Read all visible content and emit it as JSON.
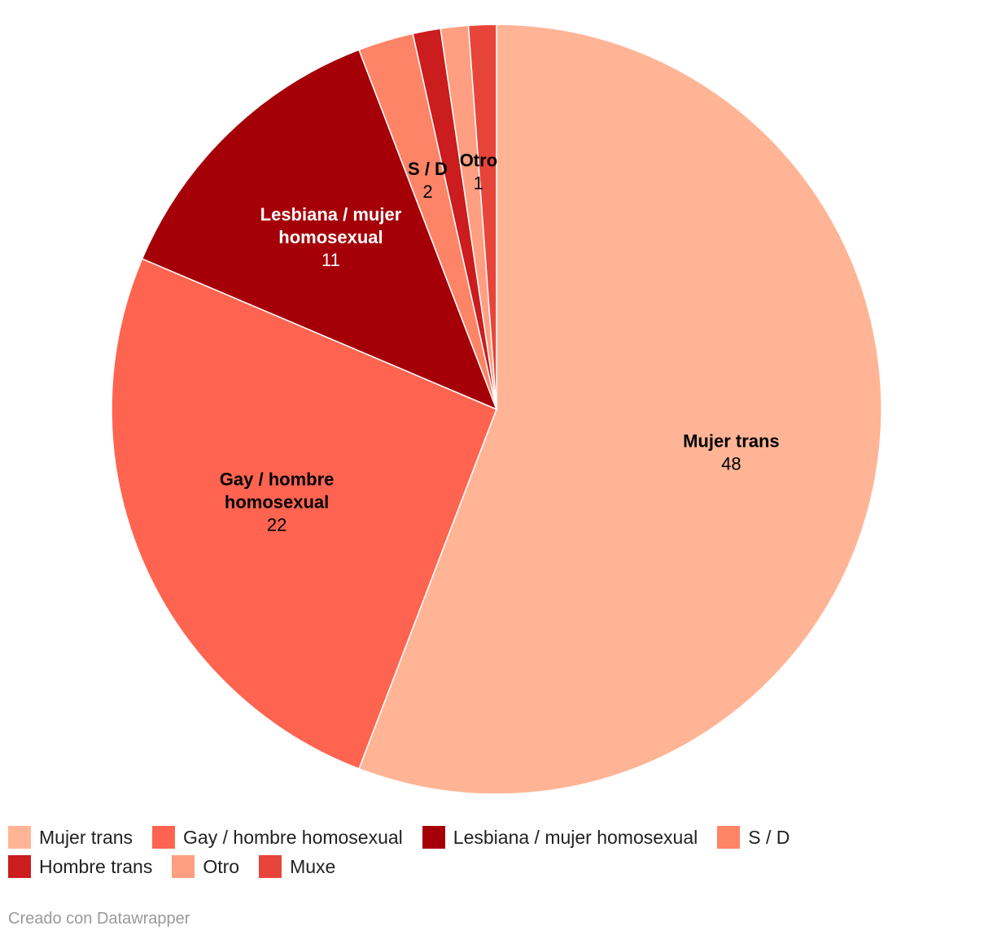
{
  "chart_data": {
    "type": "pie",
    "slices": [
      {
        "name": "Mujer trans",
        "value": 48,
        "color": "#ffb595",
        "show_label": true,
        "label_lines": [
          "Mujer trans"
        ],
        "label_color": "#000000"
      },
      {
        "name": "Gay / hombre homosexual",
        "value": 22,
        "color": "#ff6450",
        "show_label": true,
        "label_lines": [
          "Gay / hombre",
          "homosexual"
        ],
        "label_color": "#000000"
      },
      {
        "name": "Lesbiana / mujer homosexual",
        "value": 11,
        "color": "#a50008",
        "show_label": true,
        "label_lines": [
          "Lesbiana / mujer",
          "homosexual"
        ],
        "label_color": "#ffffff"
      },
      {
        "name": "S / D",
        "value": 2,
        "color": "#fe8468",
        "show_label": true,
        "label_lines": [
          "S / D"
        ],
        "label_color": "#000000"
      },
      {
        "name": "Hombre trans",
        "value": 1,
        "color": "#cb1c1e",
        "show_label": false,
        "label_lines": [
          "Hombre trans"
        ],
        "label_color": "#ffffff"
      },
      {
        "name": "Otro",
        "value": 1,
        "color": "#ff9e80",
        "show_label": true,
        "label_lines": [
          "Otro"
        ],
        "label_color": "#000000"
      },
      {
        "name": "Muxe",
        "value": 1,
        "color": "#e8453a",
        "show_label": false,
        "label_lines": [
          "Muxe"
        ],
        "label_color": "#000000"
      }
    ],
    "start": "top",
    "direction": "clockwise",
    "legend_position": "bottom-left"
  },
  "legend": [
    {
      "label": "Mujer trans",
      "color": "#ffb595"
    },
    {
      "label": "Gay / hombre homosexual",
      "color": "#ff6450"
    },
    {
      "label": "Lesbiana / mujer homosexual",
      "color": "#a50008"
    },
    {
      "label": "S / D",
      "color": "#fe8468"
    },
    {
      "label": "Hombre trans",
      "color": "#cb1c1e"
    },
    {
      "label": "Otro",
      "color": "#ff9e80"
    },
    {
      "label": "Muxe",
      "color": "#e8453a"
    }
  ],
  "footer": {
    "credit": "Creado con Datawrapper"
  }
}
